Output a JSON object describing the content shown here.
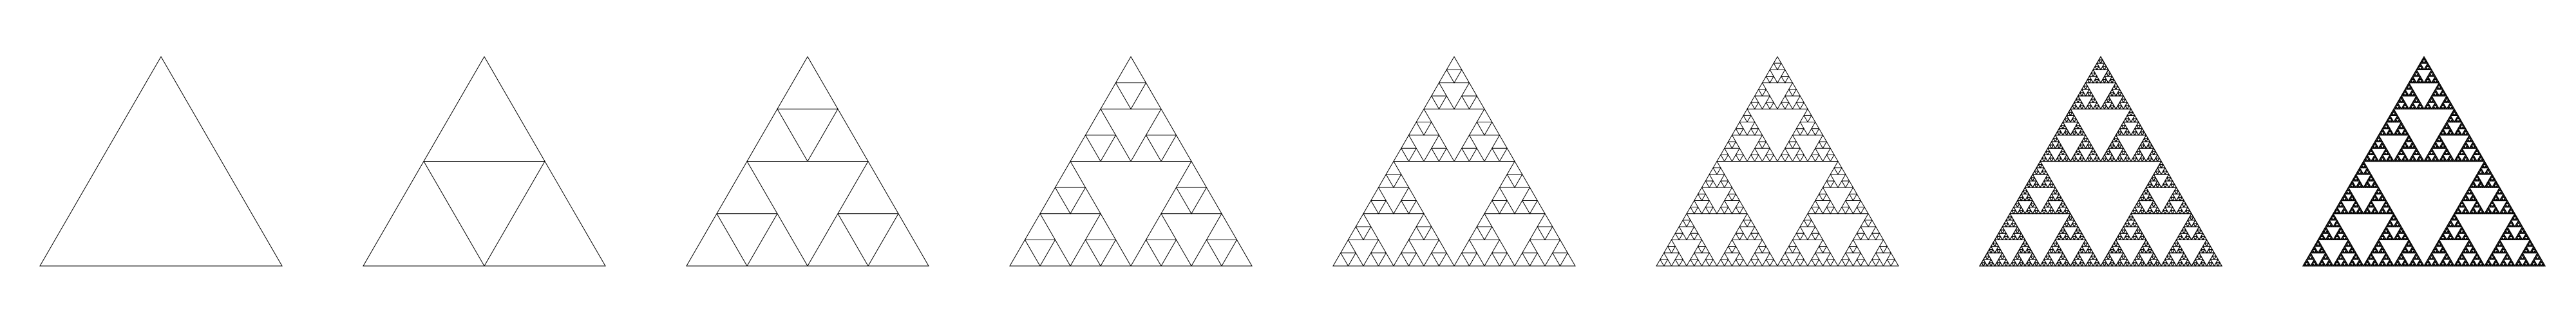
{
  "diagram": {
    "subject": "sierpinski-triangle-iterations",
    "panels": [
      {
        "depth": 0
      },
      {
        "depth": 1
      },
      {
        "depth": 2
      },
      {
        "depth": 3
      },
      {
        "depth": 4
      },
      {
        "depth": 5
      },
      {
        "depth": 6
      },
      {
        "depth": 7
      }
    ],
    "stroke_color": "#000000",
    "background_color": "#ffffff"
  }
}
